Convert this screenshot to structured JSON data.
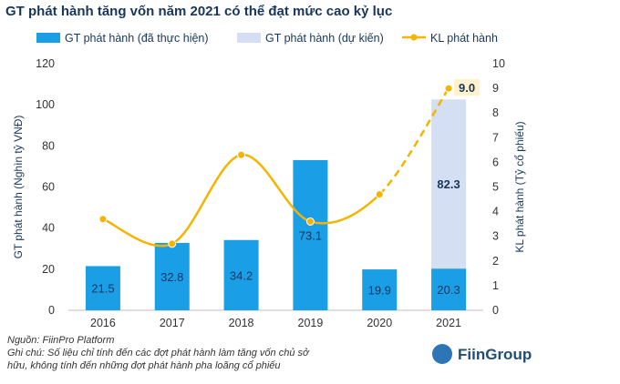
{
  "title": "GT phát hành tăng vốn năm 2021 có thể đạt mức cao kỷ lục",
  "chart_data": {
    "type": "bar",
    "categories": [
      "2016",
      "2017",
      "2018",
      "2019",
      "2020",
      "2021"
    ],
    "legend_position": "top",
    "series": [
      {
        "name": "GT phát hành (đã thực hiện)",
        "type": "bar",
        "axis": "left",
        "color": "#1a9ee5",
        "values": [
          21.5,
          32.8,
          34.2,
          73.1,
          19.9,
          20.3
        ]
      },
      {
        "name": "GT phát hành (dự kiến)",
        "type": "bar",
        "axis": "left",
        "color": "#d4dff3",
        "stacked_on": "GT phát hành (đã thực hiện)",
        "values": [
          null,
          null,
          null,
          null,
          null,
          82.3
        ]
      },
      {
        "name": "KL phát hành",
        "type": "line",
        "axis": "right",
        "color": "#f4b400",
        "values": [
          3.7,
          2.7,
          6.3,
          3.6,
          4.7,
          9.0
        ],
        "dashed_from": "2020"
      }
    ],
    "bar_labels": [
      "21.5",
      "32.8",
      "34.2",
      "73.1",
      "19.9",
      "20.3"
    ],
    "projected_label": "82.3",
    "line_end_label": "9.0",
    "y_left": {
      "label": "GT phát hành (Nghìn tỷ VNĐ)",
      "min": 0,
      "max": 120,
      "ticks": [
        0,
        20,
        40,
        60,
        80,
        100,
        120
      ]
    },
    "y_right": {
      "label": "KL phát hành (Tỷ cổ phiếu)",
      "min": 0,
      "max": 10,
      "ticks": [
        0,
        1,
        2,
        3,
        4,
        5,
        6,
        7,
        8,
        9,
        10
      ]
    },
    "grid": false
  },
  "notes": {
    "source": "Nguồn: FiinPro Platform",
    "note_line1": "Ghi chú: Số liệu chỉ tính đến các đợt phát hành làm tăng vốn chủ sở",
    "note_line2": "hữu, không tính đến những đợt phát hành pha loãng cổ phiếu"
  },
  "logo": {
    "text": "FiinGroup"
  }
}
